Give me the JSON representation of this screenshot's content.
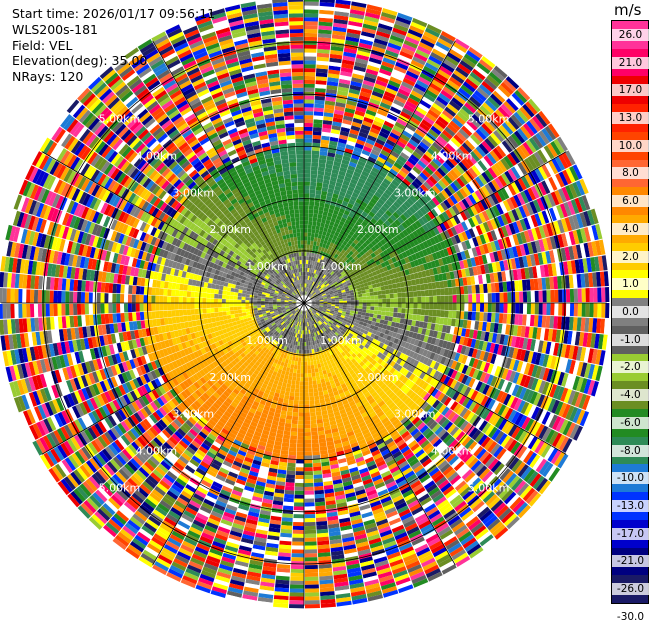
{
  "info": {
    "start_time": "Start time: 2026/01/17 09:56:11",
    "site": "WLS200s-181",
    "field": "Field: VEL",
    "elevation": "Elevation(deg): 35.00",
    "nrays": "NRays: 120"
  },
  "colorbar": {
    "units": "m/s",
    "ticks": [
      "26.0",
      "21.0",
      "17.0",
      "13.0",
      "10.0",
      "8.0",
      "6.0",
      "4.0",
      "2.0",
      "1.0",
      "0.0",
      "-1.0",
      "-2.0",
      "-4.0",
      "-6.0",
      "-8.0",
      "-10.0",
      "-13.0",
      "-17.0",
      "-21.0",
      "-26.0",
      "-30.0"
    ],
    "colors": [
      "#ff3399",
      "#ff0066",
      "#ee0000",
      "#ff2200",
      "#ff4400",
      "#ff6633",
      "#ff8800",
      "#ffaa00",
      "#ffcc00",
      "#ffff00",
      "#808080",
      "#606060",
      "#99cc33",
      "#6b8e23",
      "#228b22",
      "#2e8b57",
      "#1e7bd6",
      "#0033ff",
      "#0000cc",
      "#000080",
      "#1a1a66"
    ]
  },
  "chart_data": {
    "type": "ppi",
    "field": "VEL",
    "units": "m/s",
    "elevation_deg": 35.0,
    "nrays": 120,
    "range_rings_km": [
      1.0,
      2.0,
      3.0,
      4.0,
      5.0
    ],
    "ring_labels": [
      "1.00km",
      "2.00km",
      "3.00km",
      "4.00km",
      "5.00km"
    ],
    "radial_spokes_deg": [
      0,
      30,
      60,
      90,
      120,
      150,
      180,
      210,
      240,
      270,
      300,
      330
    ],
    "max_range_km": 5.8,
    "pattern": {
      "valid_range_km": 3.0,
      "notes": "outer gates are noise"
    }
  }
}
